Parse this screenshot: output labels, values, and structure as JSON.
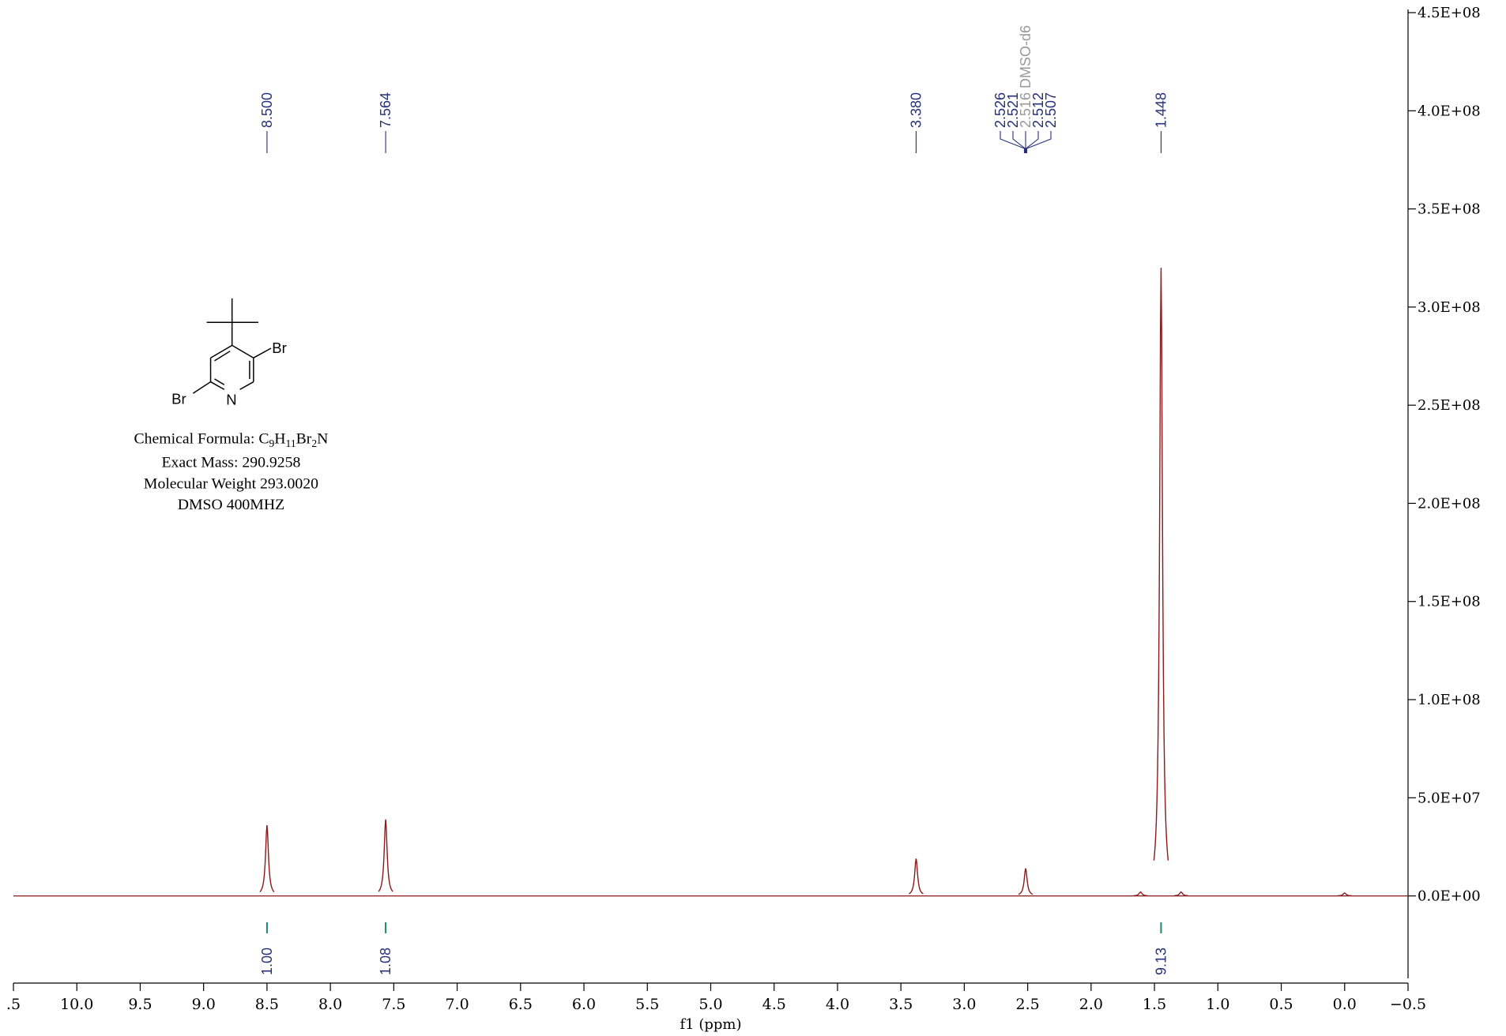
{
  "chart_data": {
    "type": "spectrum",
    "xlabel": "f1 (ppm)",
    "xlim": [
      10.5,
      -0.5
    ],
    "xticks": [
      {
        "value": 10.5,
        "label": ".5"
      },
      {
        "value": 10,
        "label": "10.0"
      },
      9.5,
      {
        "value": 9,
        "label": "9.0"
      },
      8.5,
      {
        "value": 8,
        "label": "8.0"
      },
      7.5,
      {
        "value": 7,
        "label": "7.0"
      },
      6.5,
      {
        "value": 6,
        "label": "6.0"
      },
      5.5,
      {
        "value": 5,
        "label": "5.0"
      },
      4.5,
      {
        "value": 4,
        "label": "4.0"
      },
      3.5,
      {
        "value": 3,
        "label": "3.0"
      },
      2.5,
      {
        "value": 2,
        "label": "2.0"
      },
      1.5,
      {
        "value": 1,
        "label": "1.0"
      },
      0.5,
      {
        "value": 0,
        "label": "0.0"
      },
      {
        "value": -0.5,
        "label": "−0.5"
      }
    ],
    "ylim": [
      -42000000,
      450000000
    ],
    "yticks": [
      {
        "value": 0,
        "label": "0.0E+00"
      },
      {
        "value": 50000000,
        "label": "5.0E+07"
      },
      {
        "value": 100000000,
        "label": "1.0E+08"
      },
      {
        "value": 150000000,
        "label": "1.5E+08"
      },
      {
        "value": 200000000,
        "label": "2.0E+08"
      },
      {
        "value": 250000000,
        "label": "2.5E+08"
      },
      {
        "value": 300000000,
        "label": "3.0E+08"
      },
      {
        "value": 350000000,
        "label": "3.5E+08"
      },
      {
        "value": 400000000,
        "label": "4.0E+08"
      },
      {
        "value": 450000000,
        "label": "4.5E+08"
      }
    ],
    "color": "#8b1a1a",
    "peaks": {
      "x": [
        8.5,
        7.564,
        3.38,
        2.516,
        1.448,
        1.61,
        1.29,
        0.0
      ],
      "values": [
        36000000,
        39000000,
        19000000,
        14000000,
        320000000,
        2000000,
        2000000,
        1500000
      ]
    },
    "peak_labels": {
      "x": [
        8.5,
        7.564,
        3.38,
        2.526,
        2.521,
        2.516,
        2.512,
        2.507,
        1.448
      ],
      "labels": [
        "8.500",
        "7.564",
        "3.380",
        "2.526",
        "2.521",
        "2.516 DMSO-d6",
        "2.512",
        "2.507",
        "1.448"
      ],
      "label_color": "#26307a",
      "solvent_color": "#999999",
      "solvent_index": 5
    },
    "integrals": {
      "x": [
        8.5,
        7.564,
        1.448
      ],
      "values": [
        1,
        1.08,
        9.13
      ],
      "value_labels": [
        "1.00",
        "1.08",
        "9.13"
      ],
      "color": "#1a8a6a"
    },
    "structure": {
      "atoms": [
        "Br",
        "Br",
        "N"
      ],
      "formula_prefix": "Chemical Formula: ",
      "formula": [
        {
          "text": "C"
        },
        {
          "text": "9",
          "sub": true
        },
        {
          "text": "H"
        },
        {
          "text": "11",
          "sub": true
        },
        {
          "text": "Br"
        },
        {
          "text": "2",
          "sub": true
        },
        {
          "text": "N"
        }
      ],
      "lines": [
        "Exact Mass: 290.9258",
        "Molecular Weight 293.0020",
        "DMSO 400MHZ"
      ]
    }
  }
}
